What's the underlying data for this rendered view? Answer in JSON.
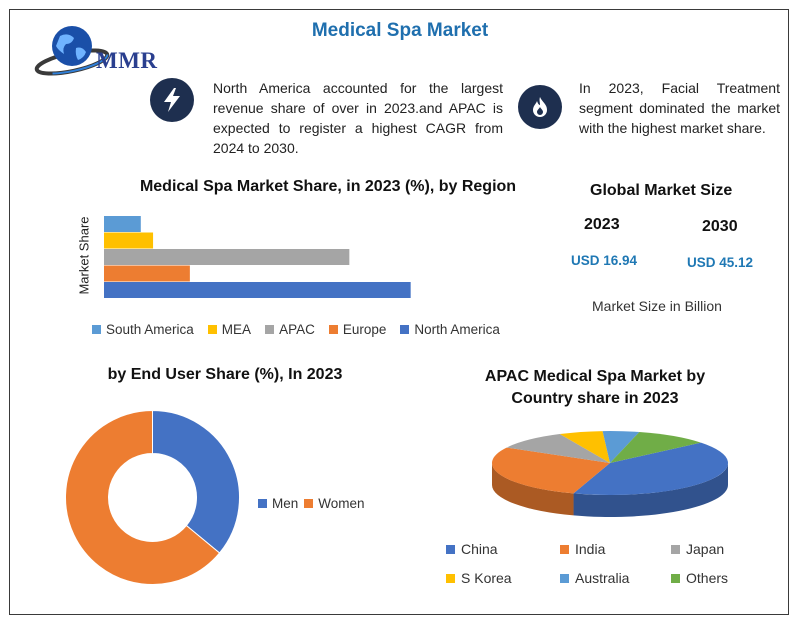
{
  "header": {
    "title": "Medical Spa Market",
    "logo_text": "MMR"
  },
  "notes": [
    {
      "icon": "lightning-icon",
      "text": "North America accounted for the largest revenue share of over in 2023.and APAC is expected to register a highest CAGR from 2024 to 2030."
    },
    {
      "icon": "flame-icon",
      "text": "In 2023, Facial Treatment segment dominated the market with the highest market share."
    }
  ],
  "market_size": {
    "title": "Global Market Size",
    "year1": "2023",
    "value1": "USD 16.94",
    "year2": "2030",
    "value2": "USD 45.12",
    "unit": "Market Size in Billion"
  },
  "colors": {
    "blue": "#4472c4",
    "orange": "#ed7d31",
    "gray": "#a5a5a5",
    "yellow": "#ffc000",
    "lightblue": "#5b9bd5",
    "green": "#70ad47",
    "title_blue": "#1f6fae"
  },
  "chart_data": [
    {
      "type": "bar",
      "orientation": "horizontal",
      "title": "Medical Spa Market Share, in 2023 (%), by Region",
      "ylabel": "Market Share",
      "xlabel": "",
      "categories": [
        "South America",
        "MEA",
        "APAC",
        "Europe",
        "North America"
      ],
      "values": [
        6,
        8,
        40,
        14,
        50
      ],
      "series_colors": [
        "#5b9bd5",
        "#ffc000",
        "#a5a5a5",
        "#ed7d31",
        "#4472c4"
      ],
      "xlim": [
        0,
        60
      ],
      "grid": false,
      "legend": "bottom"
    },
    {
      "type": "pie",
      "variant": "donut",
      "title": "by End User Share (%), In 2023",
      "categories": [
        "Men",
        "Women"
      ],
      "values": [
        36,
        64
      ],
      "series_colors": [
        "#4472c4",
        "#ed7d31"
      ],
      "legend": "right"
    },
    {
      "type": "pie",
      "variant": "3d",
      "title": "APAC Medical Spa Market by Country share in 2023",
      "categories": [
        "China",
        "India",
        "Japan",
        "S Korea",
        "Australia",
        "Others"
      ],
      "values": [
        41,
        28,
        10,
        6,
        5,
        10
      ],
      "series_colors": [
        "#4472c4",
        "#ed7d31",
        "#a5a5a5",
        "#ffc000",
        "#5b9bd5",
        "#70ad47"
      ],
      "legend": "bottom"
    }
  ]
}
